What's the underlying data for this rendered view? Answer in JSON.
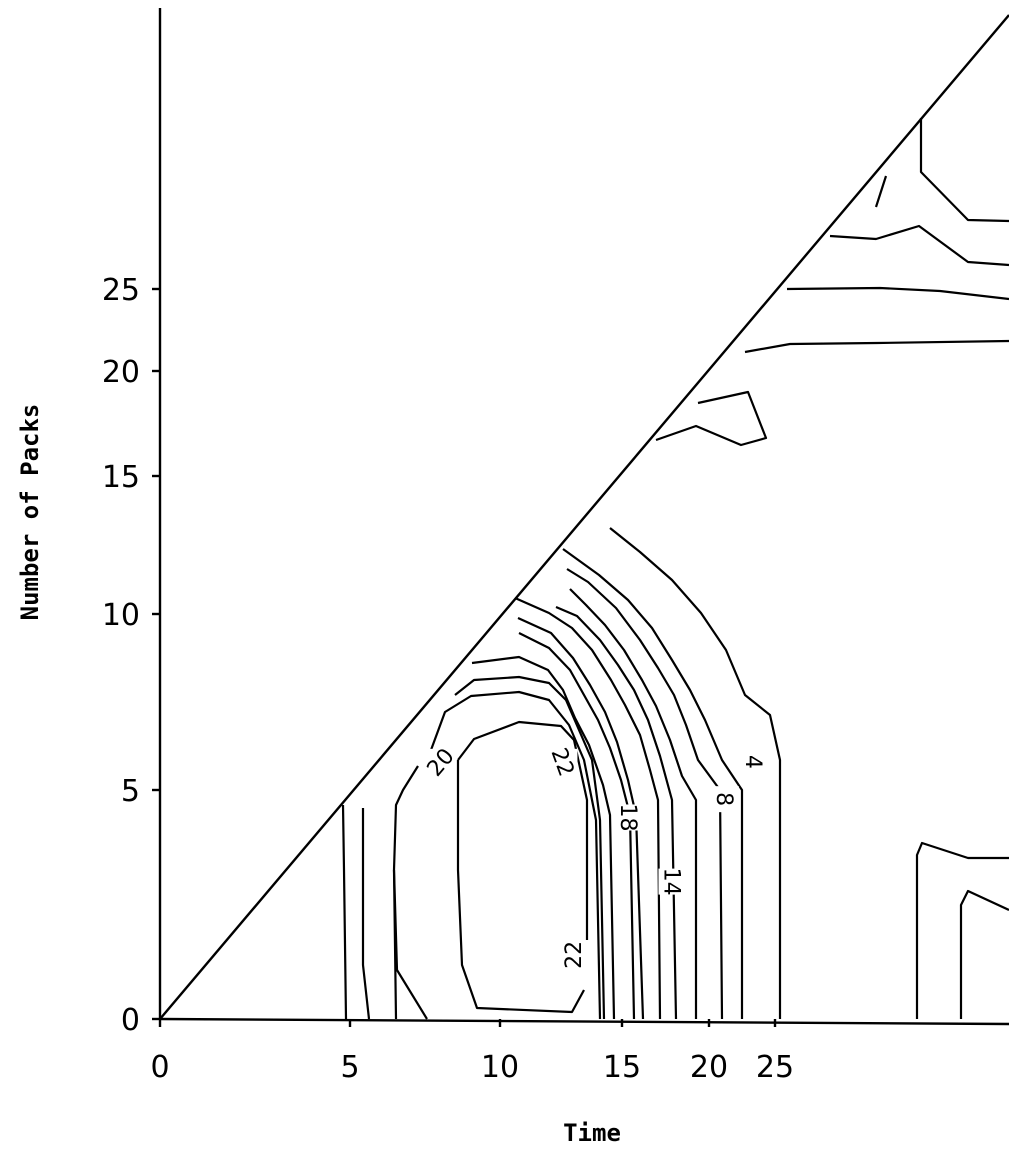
{
  "chart_data": {
    "type": "contour",
    "title": "",
    "xlabel": "Time",
    "ylabel": "Number of Packs",
    "x_ticks": [
      {
        "value": 0,
        "label": "0"
      },
      {
        "value": 5,
        "label": "5"
      },
      {
        "value": 10,
        "label": "10"
      },
      {
        "value": 15,
        "label": "15"
      },
      {
        "value": 20,
        "label": "20"
      },
      {
        "value": 25,
        "label": "25"
      }
    ],
    "y_ticks": [
      {
        "value": 0,
        "label": "0"
      },
      {
        "value": 5,
        "label": "5"
      },
      {
        "value": 10,
        "label": "10"
      },
      {
        "value": 15,
        "label": "15"
      },
      {
        "value": 20,
        "label": "20"
      },
      {
        "value": 25,
        "label": "25"
      }
    ],
    "contour_levels": [
      "4",
      "8",
      "14",
      "18",
      "20",
      "22"
    ],
    "contour_labels": [
      {
        "text": "20",
        "x": 8.0,
        "y": 5.8
      },
      {
        "text": "22",
        "x": 12.6,
        "y": 5.8
      },
      {
        "text": "18",
        "x": 15.4,
        "y": 4.4
      },
      {
        "text": "14",
        "x": 17.9,
        "y": 3.0
      },
      {
        "text": "8",
        "x": 21.2,
        "y": 4.8
      },
      {
        "text": "4",
        "x": 23.4,
        "y": 5.8
      },
      {
        "text": "22",
        "x": 13.0,
        "y": 1.4
      }
    ]
  }
}
